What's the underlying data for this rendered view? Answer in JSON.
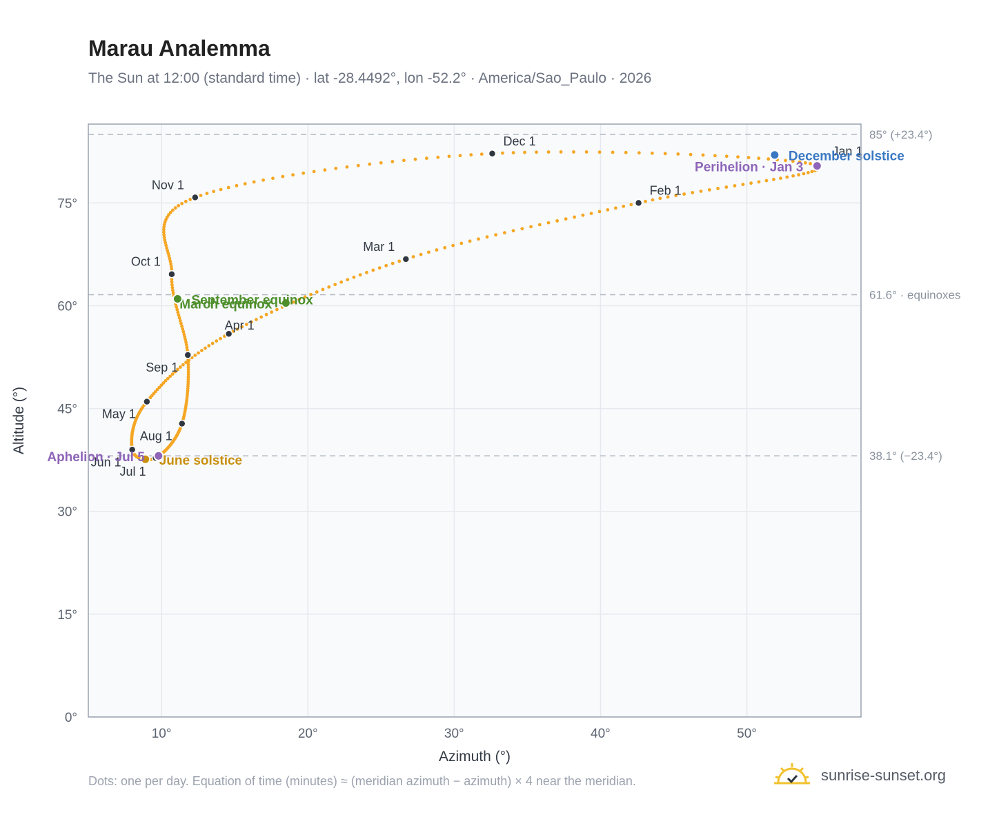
{
  "header": {
    "title": "Marau Analemma",
    "subtitle": "The Sun at 12:00 (standard time) · lat -28.4492°, lon -52.2° · America/Sao_Paulo · 2026"
  },
  "footer": {
    "note": "Dots: one per day. Equation of time (minutes) ≈ (meridian azimuth − azimuth) × 4 near the meridian.",
    "brand": "sunrise-sunset.org"
  },
  "colors": {
    "path": "#f5a623",
    "month_marker": "#2f3640",
    "december_solstice": "#3a78c3",
    "june_solstice": "#c9900f",
    "equinox": "#4e8f2b",
    "perihelion_aphelion": "#8e65b8",
    "plot_bg": "#f8fafc",
    "grid": "#e6e9ee",
    "reference_line": "#aeb6c0"
  },
  "chart_data": {
    "type": "scatter",
    "title": "Marau Analemma",
    "xlabel": "Azimuth (°)",
    "ylabel": "Altitude (°)",
    "xlim": [
      5,
      57.8
    ],
    "ylim": [
      0,
      86.5
    ],
    "xticks": [
      10,
      20,
      30,
      40,
      50
    ],
    "xtick_labels": [
      "10°",
      "20°",
      "30°",
      "40°",
      "50°"
    ],
    "yticks": [
      0,
      15,
      30,
      45,
      60,
      75
    ],
    "ytick_labels": [
      "0°",
      "15°",
      "30°",
      "45°",
      "60°",
      "75°"
    ],
    "grid": true,
    "month_markers": [
      {
        "label": "Jan 1",
        "x": 54.8,
        "y": 80.5
      },
      {
        "label": "Feb 1",
        "x": 42.6,
        "y": 75.0
      },
      {
        "label": "Mar 1",
        "x": 26.7,
        "y": 66.8
      },
      {
        "label": "Apr 1",
        "x": 14.6,
        "y": 55.9
      },
      {
        "label": "May 1",
        "x": 9.0,
        "y": 46.0
      },
      {
        "label": "Jun 1",
        "x": 8.0,
        "y": 39.0
      },
      {
        "label": "Jul 1",
        "x": 9.6,
        "y": 37.8
      },
      {
        "label": "Aug 1",
        "x": 11.4,
        "y": 42.8
      },
      {
        "label": "Sep 1",
        "x": 11.8,
        "y": 52.8
      },
      {
        "label": "Oct 1",
        "x": 10.7,
        "y": 64.6
      },
      {
        "label": "Nov 1",
        "x": 12.3,
        "y": 75.8
      },
      {
        "label": "Dec 1",
        "x": 32.6,
        "y": 82.2
      }
    ],
    "events": [
      {
        "label": "December solstice",
        "x": 51.9,
        "y": 82.0,
        "color_key": "december_solstice"
      },
      {
        "label": "Perihelion · Jan 3",
        "x": 54.8,
        "y": 80.4,
        "color_key": "perihelion_aphelion"
      },
      {
        "label": "March equinox",
        "x": 18.5,
        "y": 60.4,
        "color_key": "equinox"
      },
      {
        "label": "September equinox",
        "x": 11.1,
        "y": 61.0,
        "color_key": "equinox"
      },
      {
        "label": "June solstice",
        "x": 8.9,
        "y": 37.6,
        "color_key": "june_solstice"
      },
      {
        "label": "Aphelion · Jul 5",
        "x": 9.8,
        "y": 38.1,
        "color_key": "perihelion_aphelion"
      }
    ],
    "reference_lines": [
      {
        "y": 85.0,
        "label": "85° (+23.4°)"
      },
      {
        "y": 61.6,
        "label": "61.6° · equinoxes"
      },
      {
        "y": 38.1,
        "label": "38.1° (−23.4°)"
      }
    ]
  }
}
